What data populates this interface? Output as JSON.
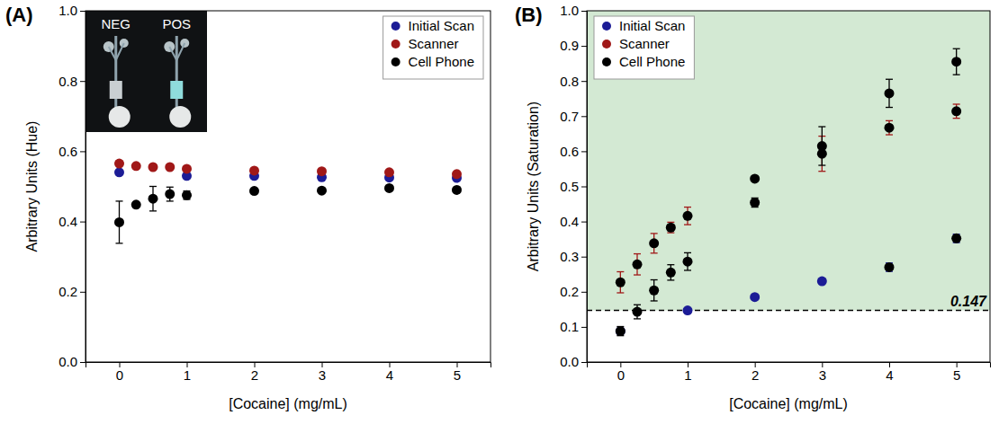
{
  "chart_data": [
    {
      "type": "scatter",
      "title": "(A)",
      "x_label": "[Cocaine] (mg/mL)",
      "y_label": "Arbitrary Units (Hue)",
      "x": [
        0,
        0.25,
        0.5,
        0.75,
        1,
        2,
        3,
        4,
        5
      ],
      "xlim": [
        -0.5,
        5.5
      ],
      "xticks": [
        0,
        1,
        2,
        3,
        4,
        5
      ],
      "ylim": [
        0,
        1.0
      ],
      "yticks": [
        {
          "value": 0,
          "label": "0.0"
        },
        0.2,
        0.4,
        0.6,
        0.8,
        {
          "value": 1.0,
          "label": "1.0"
        }
      ],
      "grid": false,
      "legend": "upper right",
      "marker": "circle",
      "annotations": [
        {
          "text": "NEG"
        },
        {
          "text": "POS"
        }
      ],
      "series": [
        {
          "name": "Initial Scan",
          "color": "#1c1c96",
          "values": [
            0.54,
            null,
            null,
            null,
            0.53,
            0.53,
            0.526,
            0.525,
            0.524
          ],
          "errors": [
            null,
            null,
            null,
            null,
            null,
            null,
            null,
            null,
            null
          ]
        },
        {
          "name": "Scanner",
          "color": "#a01818",
          "values": [
            0.565,
            0.558,
            0.555,
            0.555,
            0.55,
            0.545,
            0.543,
            0.54,
            0.535
          ],
          "errors": [
            null,
            null,
            null,
            null,
            null,
            null,
            null,
            null,
            null
          ]
        },
        {
          "name": "Cell Phone",
          "color": "#000000",
          "values": [
            0.398,
            0.448,
            0.465,
            0.478,
            0.475,
            0.487,
            0.488,
            0.495,
            0.49
          ],
          "errors": [
            0.06,
            null,
            0.035,
            0.02,
            0.012,
            null,
            null,
            null,
            null
          ]
        }
      ]
    },
    {
      "type": "scatter",
      "title": "(B)",
      "x_label": "[Cocaine] (mg/mL)",
      "y_label": "Arbitrary Units (Saturation)",
      "x": [
        0,
        0.25,
        0.5,
        0.75,
        1,
        2,
        3,
        4,
        5
      ],
      "xlim": [
        -0.5,
        5.5
      ],
      "xticks": [
        0,
        1,
        2,
        3,
        4,
        5
      ],
      "ylim": [
        0,
        1.0
      ],
      "yticks": [
        {
          "value": 0,
          "label": "0.0"
        },
        0.1,
        0.2,
        0.3,
        0.4,
        0.5,
        0.6,
        0.7,
        0.8,
        0.9,
        {
          "value": 1.0,
          "label": "1.0"
        }
      ],
      "grid": false,
      "legend": "upper left",
      "marker": "circle",
      "annotations": [
        {
          "y": 0.147,
          "text": "0.147"
        }
      ],
      "series": [
        {
          "name": "Initial Scan",
          "color": "#1c1c96",
          "values": [
            0.088,
            null,
            null,
            null,
            0.147,
            0.185,
            0.23,
            0.27,
            0.352
          ],
          "errors": [
            null,
            null,
            null,
            null,
            null,
            null,
            null,
            0.012,
            0.012
          ]
        },
        {
          "name": "Scanner",
          "color": "#a01818",
          "values": [
            0.227,
            0.278,
            0.338,
            0.383,
            0.416,
            0.522,
            0.593,
            0.667,
            0.714
          ],
          "errors": [
            0.03,
            0.03,
            0.028,
            0.015,
            0.025,
            0.005,
            0.05,
            0.02,
            0.02
          ]
        },
        {
          "name": "Cell Phone",
          "color": "#000000",
          "values": [
            0.088,
            0.143,
            0.204,
            0.255,
            0.286,
            0.454,
            0.615,
            0.765,
            0.855
          ],
          "errors": [
            0.013,
            0.02,
            0.03,
            0.022,
            0.025,
            0.013,
            0.055,
            0.04,
            0.037
          ]
        }
      ]
    }
  ]
}
